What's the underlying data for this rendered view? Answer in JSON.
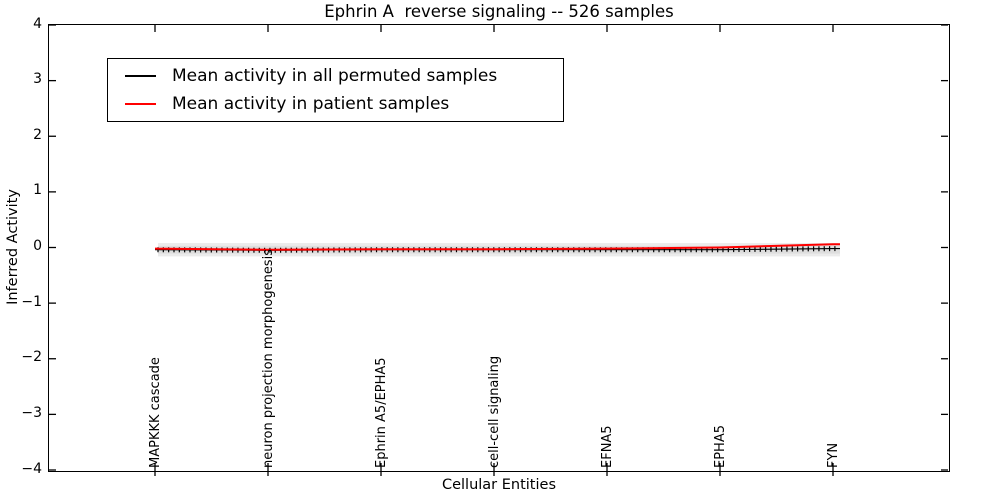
{
  "figure": {
    "title": "Ephrin A  reverse signaling -- 526 samples",
    "xlabel": "Cellular Entities",
    "ylabel": "Inferred Activity"
  },
  "chart_data": {
    "type": "line",
    "title": "Ephrin A  reverse signaling -- 526 samples",
    "xlabel": "Cellular Entities",
    "ylabel": "Inferred Activity",
    "ylim": [
      -4,
      4
    ],
    "yticks": [
      4,
      3,
      2,
      1,
      0,
      -1,
      -2,
      -3,
      -4
    ],
    "ytick_labels": [
      "4",
      "3",
      "2",
      "1",
      "0",
      "−1",
      "−2",
      "−3",
      "−4"
    ],
    "grid": false,
    "legend_position": "upper left",
    "categories": [
      "MAPKKK cascade",
      "neuron projection morphogenesis",
      "Ephrin A5/EPHA5",
      "cell-cell signaling",
      "EFNA5",
      "EPHA5",
      "FYN"
    ],
    "series": [
      {
        "name": "Mean activity in all permuted samples",
        "color": "#000000",
        "style": "solid with vertical tick markers",
        "values": [
          -0.04,
          -0.05,
          -0.04,
          -0.04,
          -0.04,
          -0.04,
          -0.02
        ]
      },
      {
        "name": "Mean activity in patient samples",
        "color": "#ff0000",
        "style": "solid",
        "values": [
          -0.02,
          -0.04,
          -0.03,
          -0.03,
          -0.02,
          0.0,
          0.06
        ]
      }
    ],
    "bands": [
      {
        "name": "permuted range outer",
        "upper": 0.08,
        "lower": -0.16,
        "color": "#ebebeb"
      },
      {
        "name": "permuted range inner",
        "upper": 0.03,
        "lower": -0.11,
        "color": "#dedede"
      }
    ]
  }
}
